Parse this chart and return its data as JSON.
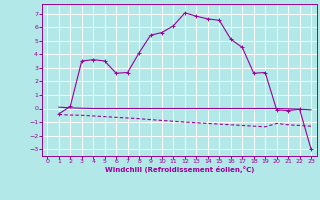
{
  "xlabel": "Windchill (Refroidissement éolien,°C)",
  "bg_color": "#b3e8e8",
  "line_color": "#990099",
  "grid_color": "#ffffff",
  "ylim": [
    -3.5,
    7.7
  ],
  "xlim": [
    -0.5,
    23.5
  ],
  "yticks": [
    -3,
    -2,
    -1,
    0,
    1,
    2,
    3,
    4,
    5,
    6,
    7
  ],
  "xticks": [
    0,
    1,
    2,
    3,
    4,
    5,
    6,
    7,
    8,
    9,
    10,
    11,
    12,
    13,
    14,
    15,
    16,
    17,
    18,
    19,
    20,
    21,
    22,
    23
  ],
  "curve1_x": [
    1,
    2,
    3,
    4,
    5,
    6,
    7,
    8,
    9,
    10,
    11,
    12,
    13,
    14,
    15,
    16,
    17,
    18,
    19,
    20,
    21,
    22,
    23
  ],
  "curve1_y": [
    -0.4,
    0.15,
    3.5,
    3.6,
    3.5,
    2.6,
    2.65,
    4.1,
    5.4,
    5.6,
    6.1,
    7.05,
    6.8,
    6.6,
    6.5,
    5.1,
    4.5,
    2.6,
    2.65,
    -0.1,
    -0.15,
    -0.05,
    -3.0
  ],
  "curve2_x": [
    1,
    2,
    3,
    4,
    5,
    6,
    7,
    8,
    9,
    10,
    11,
    12,
    13,
    14,
    15,
    16,
    17,
    18,
    19,
    20,
    21,
    22,
    23
  ],
  "curve2_y": [
    0.1,
    0.05,
    0.02,
    0.0,
    0.0,
    0.0,
    0.0,
    0.0,
    0.0,
    0.0,
    0.0,
    0.0,
    0.0,
    0.0,
    0.0,
    0.0,
    0.0,
    0.0,
    0.0,
    0.0,
    -0.02,
    -0.05,
    -0.1
  ],
  "curve3_x": [
    1,
    2,
    3,
    4,
    5,
    6,
    7,
    8,
    9,
    10,
    11,
    12,
    13,
    14,
    15,
    16,
    17,
    18,
    19,
    20,
    21,
    22,
    23
  ],
  "curve3_y": [
    -0.45,
    -0.48,
    -0.5,
    -0.55,
    -0.6,
    -0.65,
    -0.7,
    -0.75,
    -0.82,
    -0.88,
    -0.94,
    -1.0,
    -1.05,
    -1.1,
    -1.15,
    -1.2,
    -1.25,
    -1.3,
    -1.35,
    -1.1,
    -1.2,
    -1.25,
    -1.3
  ]
}
